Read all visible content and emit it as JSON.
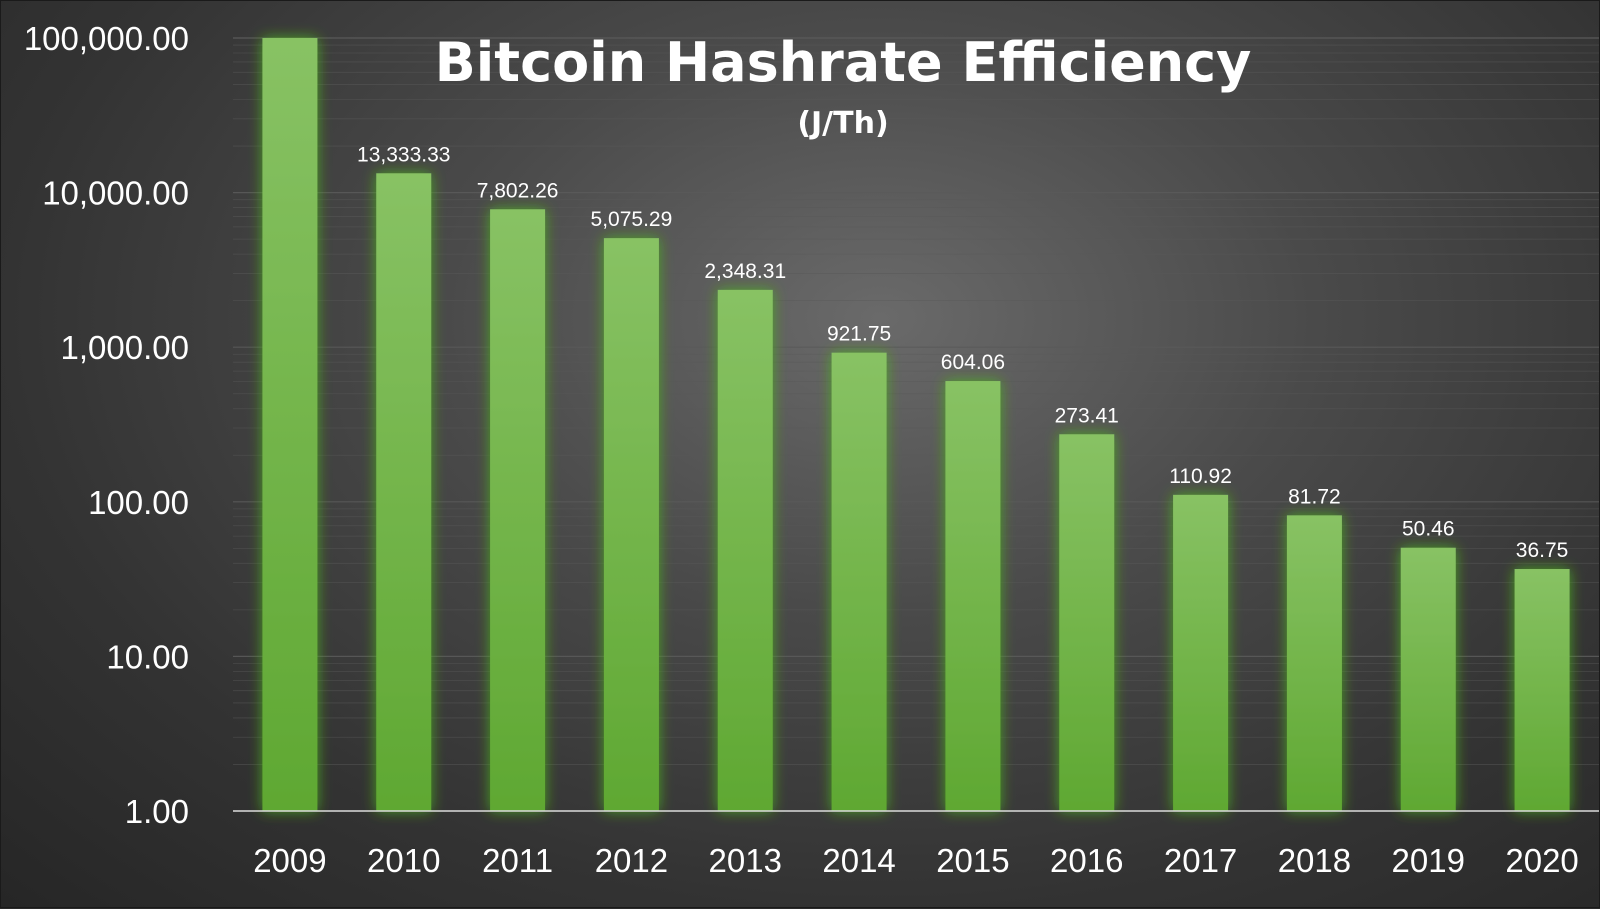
{
  "chart_data": {
    "type": "bar",
    "title": "Bitcoin Hashrate Efficiency",
    "subtitle": "(J/Th)",
    "xlabel": "",
    "ylabel": "",
    "yscale": "log",
    "ylim": [
      1,
      100000
    ],
    "yticks": [
      "1.00",
      "10.00",
      "100.00",
      "1,000.00",
      "10,000.00",
      "100,000.00"
    ],
    "categories": [
      "2009",
      "2010",
      "2011",
      "2012",
      "2013",
      "2014",
      "2015",
      "2016",
      "2017",
      "2018",
      "2019",
      "2020"
    ],
    "values": [
      100000,
      13333.33,
      7802.26,
      5075.29,
      2348.31,
      921.75,
      604.06,
      273.41,
      110.92,
      81.72,
      50.46,
      36.75
    ],
    "data_labels": [
      "",
      "13,333.33",
      "7,802.26",
      "5,075.29",
      "2,348.31",
      "921.75",
      "604.06",
      "273.41",
      "110.92",
      "81.72",
      "50.46",
      "36.75"
    ],
    "grid": true,
    "legend": "none",
    "colors": {
      "bar_top": "#88c264",
      "bar_bottom": "#5fa832",
      "glow": "#4caf1a",
      "axis": "#d9d9d9",
      "gridline": "#5a5a5a",
      "text": "#ffffff"
    }
  }
}
